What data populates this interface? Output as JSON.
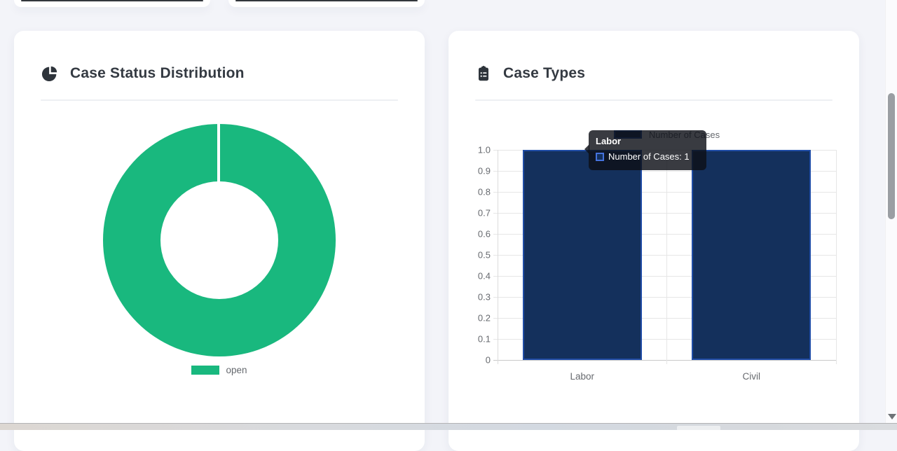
{
  "page": {
    "background": "#f3f4f9"
  },
  "status_card": {
    "title": "Case Status Distribution"
  },
  "types_card": {
    "title": "Case Types"
  },
  "chart_data": [
    {
      "type": "pie",
      "variant": "doughnut",
      "title": "Case Status Distribution",
      "categories": [
        "open"
      ],
      "values": [
        1
      ],
      "colors": [
        "#19b87e"
      ],
      "legend_position": "bottom",
      "grid": false
    },
    {
      "type": "bar",
      "title": "Case Types",
      "categories": [
        "Labor",
        "Civil"
      ],
      "series": [
        {
          "name": "Number of Cases",
          "values": [
            1,
            1
          ]
        }
      ],
      "ylim": [
        0,
        1.0
      ],
      "y_ticks": [
        "1.0",
        "0.9",
        "0.8",
        "0.7",
        "0.6",
        "0.5",
        "0.4",
        "0.3",
        "0.2",
        "0.1",
        "0"
      ],
      "grid": true,
      "legend_position": "top",
      "bar_fill": "#14305c",
      "bar_border": "#204da6",
      "tooltip": {
        "title": "Labor",
        "label": "Number of Cases: 1",
        "color_box_border": "#4472dd"
      }
    }
  ]
}
